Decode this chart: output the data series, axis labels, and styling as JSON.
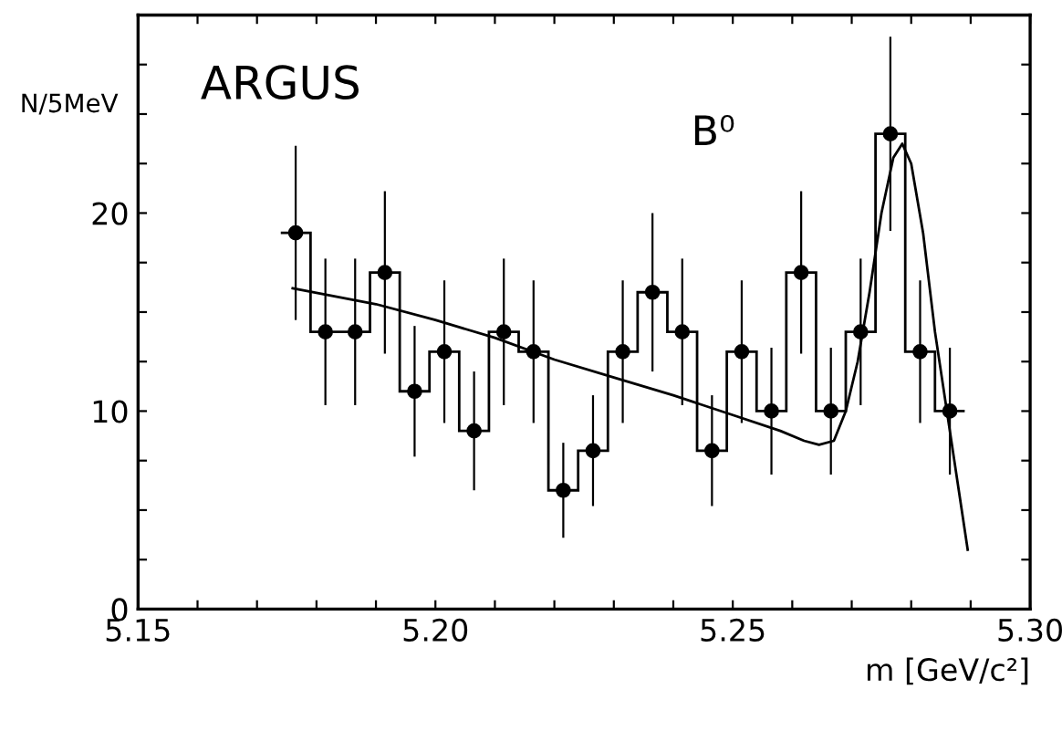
{
  "chart_data": {
    "type": "histogram",
    "xlabel": "m [GeV/c²]",
    "ylabel": "N/5MeV",
    "annotations": [
      "ARGUS",
      "B⁰"
    ],
    "bins": [
      5.174,
      5.179,
      5.184,
      5.189,
      5.194,
      5.199,
      5.204,
      5.209,
      5.214,
      5.219,
      5.224,
      5.229,
      5.234,
      5.239,
      5.244,
      5.249,
      5.254,
      5.259,
      5.264,
      5.269,
      5.274,
      5.279,
      5.284,
      5.289
    ],
    "series": [
      {
        "color": "#000000",
        "values": [
          19,
          14,
          14,
          17,
          11,
          13,
          9,
          14,
          13,
          6,
          8,
          13,
          16,
          14,
          8,
          13,
          10,
          17,
          10,
          14,
          24,
          13,
          10
        ]
      },
      {
        "type": "scatter",
        "color": "#000000",
        "marker": "circle",
        "x": [
          5.1765,
          5.1815,
          5.1865,
          5.1915,
          5.1965,
          5.2015,
          5.2065,
          5.2115,
          5.2165,
          5.2215,
          5.2265,
          5.2315,
          5.2365,
          5.2415,
          5.2465,
          5.2515,
          5.2565,
          5.2615,
          5.2665,
          5.2715,
          5.2765,
          5.2815,
          5.2865
        ],
        "values": [
          19,
          14,
          14,
          17,
          11,
          13,
          9,
          14,
          13,
          6,
          8,
          13,
          16,
          14,
          8,
          13,
          10,
          17,
          10,
          14,
          24,
          13,
          10
        ],
        "errors": [
          4.4,
          3.7,
          3.7,
          4.1,
          3.3,
          3.6,
          3.0,
          3.7,
          3.6,
          2.4,
          2.8,
          3.6,
          4.0,
          3.7,
          2.8,
          3.6,
          3.2,
          4.1,
          3.2,
          3.7,
          4.9,
          3.6,
          3.2
        ]
      },
      {
        "type": "line",
        "color": "#000000",
        "x": [
          5.176,
          5.19,
          5.2,
          5.21,
          5.22,
          5.23,
          5.24,
          5.25,
          5.258,
          5.262,
          5.2645,
          5.267,
          5.269,
          5.271,
          5.273,
          5.275,
          5.277,
          5.2785,
          5.28,
          5.282,
          5.284,
          5.286,
          5.288,
          5.2895
        ],
        "values": [
          16.2,
          15.4,
          14.6,
          13.7,
          12.6,
          11.7,
          10.8,
          9.8,
          9.0,
          8.5,
          8.3,
          8.5,
          10,
          12.5,
          16,
          20,
          22.8,
          23.5,
          22.5,
          19,
          14,
          10,
          6,
          3
        ]
      }
    ],
    "xlim": [
      5.15,
      5.3
    ],
    "xticks": [
      5.15,
      {
        "value": 5.16,
        "label": null
      },
      {
        "value": 5.17,
        "label": null
      },
      {
        "value": 5.18,
        "label": null
      },
      {
        "value": 5.19,
        "label": null
      },
      {
        "value": 5.2,
        "label": "5.20"
      },
      {
        "value": 5.21,
        "label": null
      },
      {
        "value": 5.22,
        "label": null
      },
      {
        "value": 5.23,
        "label": null
      },
      {
        "value": 5.24,
        "label": null
      },
      5.25,
      {
        "value": 5.26,
        "label": null
      },
      {
        "value": 5.27,
        "label": null
      },
      {
        "value": 5.28,
        "label": null
      },
      {
        "value": 5.29,
        "label": null
      },
      {
        "value": 5.3,
        "label": "5.30"
      }
    ],
    "ylim": [
      0,
      30
    ],
    "yticks": [
      0,
      {
        "value": 2.5,
        "label": null
      },
      {
        "value": 5,
        "label": null
      },
      {
        "value": 7.5,
        "label": null
      },
      10,
      {
        "value": 12.5,
        "label": null
      },
      {
        "value": 15,
        "label": null
      },
      {
        "value": 17.5,
        "label": null
      },
      20,
      {
        "value": 22.5,
        "label": null
      },
      {
        "value": 25,
        "label": null
      },
      {
        "value": 27.5,
        "label": null
      }
    ],
    "grid": false,
    "legend": false
  }
}
